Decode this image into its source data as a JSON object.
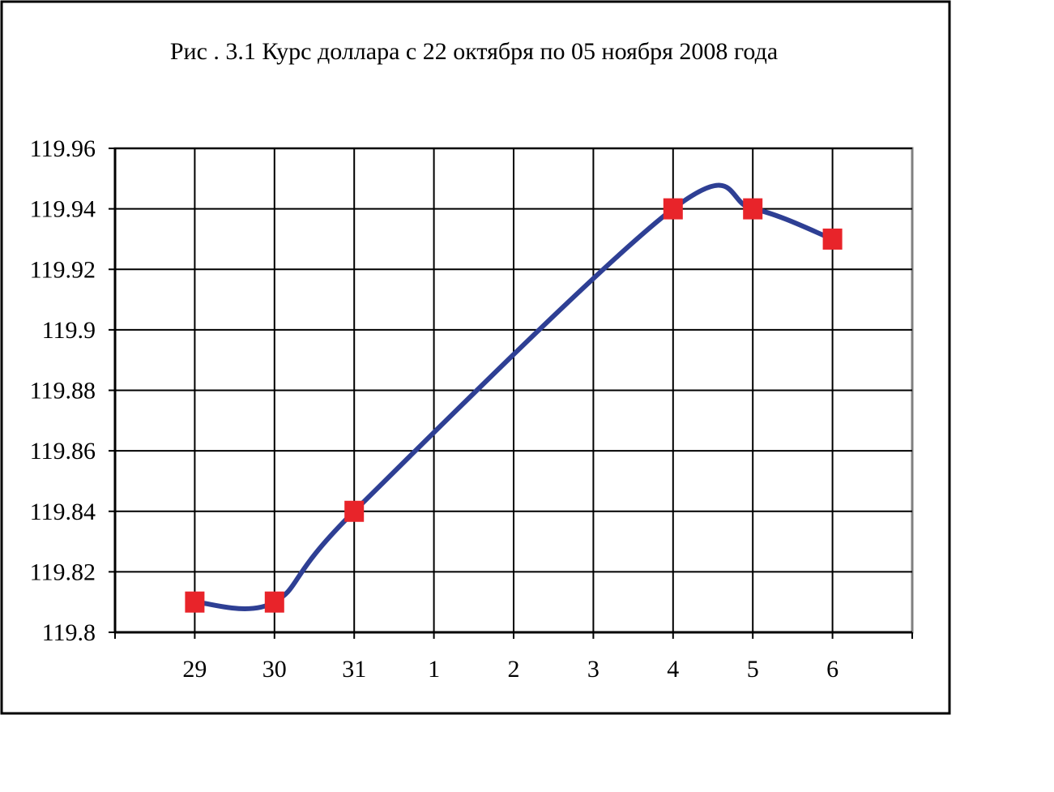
{
  "chart_data": {
    "type": "line",
    "title": "Рис . 3.1 Курс доллара с 22 октября по 05 ноября 2008 года",
    "xlabel": "",
    "ylabel": "",
    "categories": [
      "29",
      "30",
      "31",
      "1",
      "2",
      "3",
      "4",
      "5",
      "6"
    ],
    "ylim": [
      119.8,
      119.96
    ],
    "ytick_labels": [
      "119.96",
      "119.94",
      "119.92",
      "119.9",
      "119.88",
      "119.86",
      "119.84",
      "119.82",
      "119.8"
    ],
    "ytick_values": [
      119.96,
      119.94,
      119.92,
      119.9,
      119.88,
      119.86,
      119.84,
      119.82,
      119.8
    ],
    "series": [
      {
        "x": [
          "29",
          "30",
          "31",
          "4",
          "5",
          "6"
        ],
        "values": [
          119.81,
          119.81,
          119.84,
          119.94,
          119.94,
          119.93
        ],
        "line_color": "#2e3f94",
        "marker_color": "#e8242a",
        "marker": "square",
        "smooth": true
      }
    ],
    "grid": true,
    "legend": "none"
  }
}
